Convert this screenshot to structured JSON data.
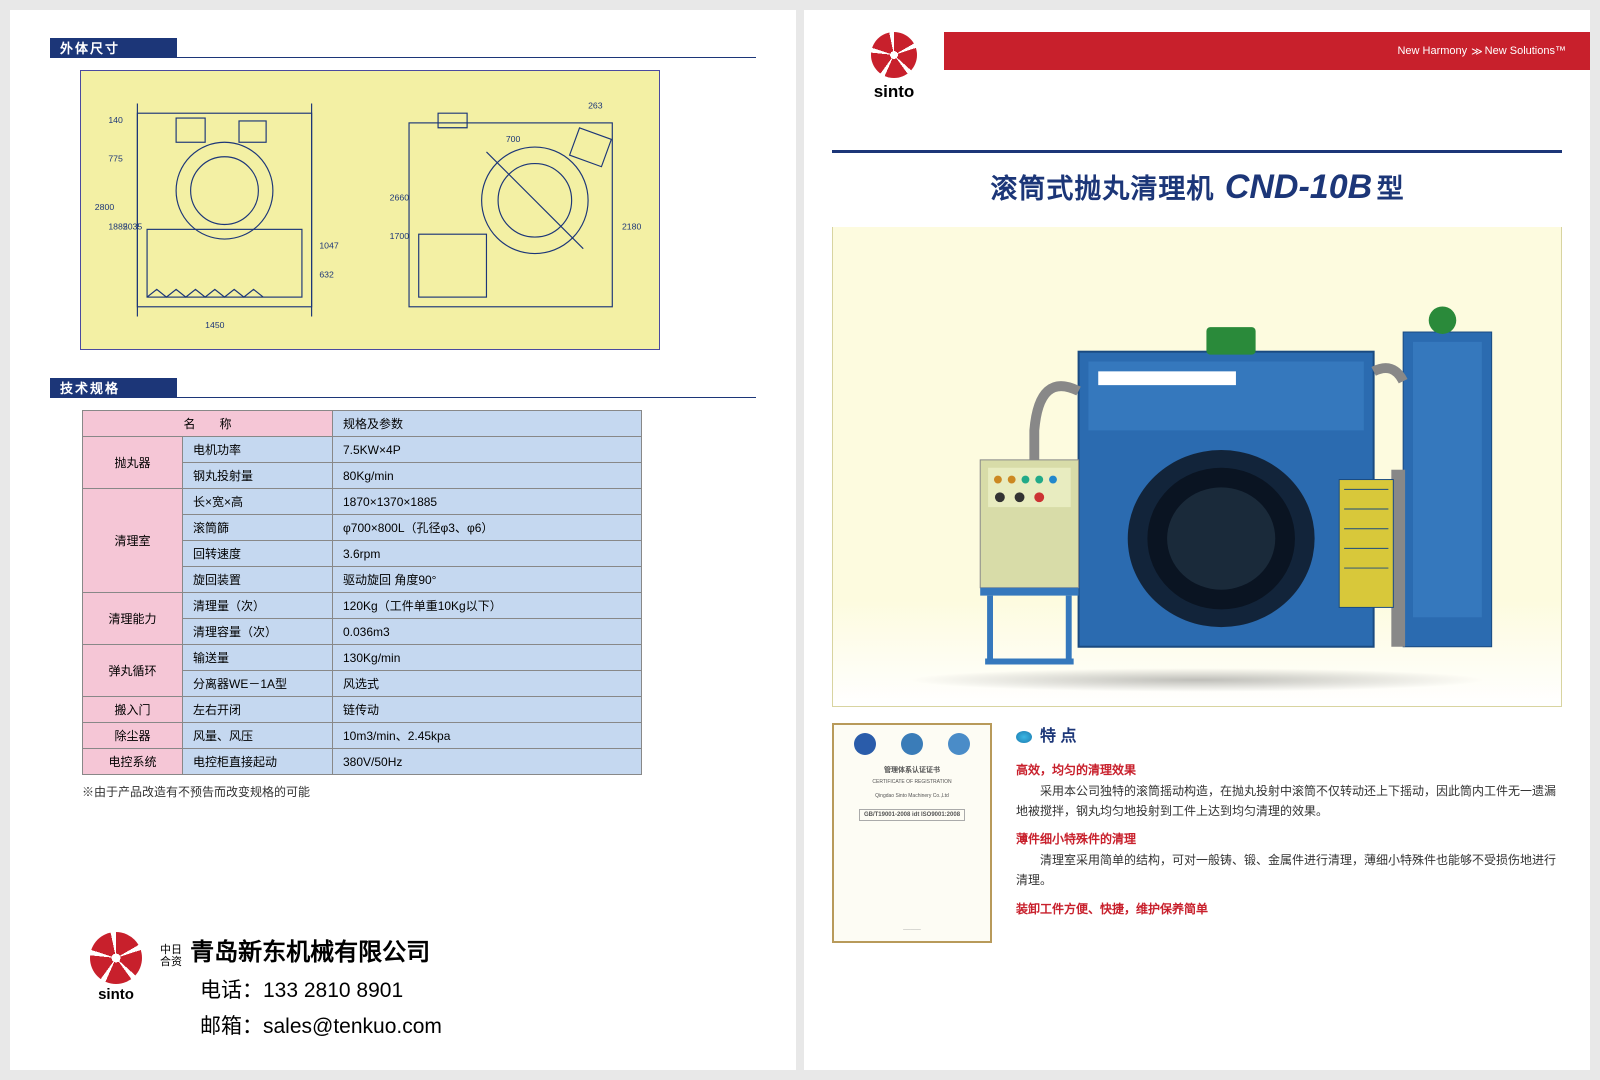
{
  "left": {
    "section1_title": "外体尺寸",
    "section2_title": "技术规格",
    "diagram_dims": {
      "d1": [
        "140",
        "775",
        "1885",
        "2035",
        "2800",
        "632",
        "1047",
        "1450"
      ],
      "d2": [
        "263",
        "700",
        "1700",
        "2660",
        "2180"
      ]
    },
    "table": {
      "header_name": "名　　称",
      "header_spec": "规格及参数",
      "rows": [
        {
          "cat": "抛丸器",
          "rowspan": 2,
          "name": "电机功率",
          "val": "7.5KW×4P"
        },
        {
          "cat": null,
          "name": "钢丸投射量",
          "val": "80Kg/min"
        },
        {
          "cat": "清理室",
          "rowspan": 4,
          "name": "长×宽×高",
          "val": "1870×1370×1885"
        },
        {
          "cat": null,
          "name": "滚筒篩",
          "val": "φ700×800L（孔径φ3、φ6）"
        },
        {
          "cat": null,
          "name": "回转速度",
          "val": "3.6rpm"
        },
        {
          "cat": null,
          "name": "旋回装置",
          "val": "驱动旋回 角度90°"
        },
        {
          "cat": "清理能力",
          "rowspan": 2,
          "name": "清理量（次）",
          "val": "120Kg（工件单重10Kg以下）"
        },
        {
          "cat": null,
          "name": "清理容量（次）",
          "val": "0.036m3"
        },
        {
          "cat": "弹丸循环",
          "rowspan": 2,
          "name": "输送量",
          "val": "130Kg/min"
        },
        {
          "cat": null,
          "name": "分离器WE－1A型",
          "val": "风选式"
        },
        {
          "cat": "搬入门",
          "rowspan": 1,
          "name": "左右开闭",
          "val": "链传动"
        },
        {
          "cat": "除尘器",
          "rowspan": 1,
          "name": "风量、风压",
          "val": "10m3/min、2.45kpa"
        },
        {
          "cat": "电控系统",
          "rowspan": 1,
          "name": "电控柜直接起动",
          "val": "380V/50Hz"
        }
      ]
    },
    "note": "※由于产品改造有不预告而改变规格的可能",
    "company": {
      "jv1": "中日",
      "jv2": "合资",
      "name": "青岛新东机械有限公司",
      "tel_label": "电话：",
      "tel": "133 2810 8901",
      "mail_label": "邮箱：",
      "mail": "sales@tenkuo.com",
      "brand": "sinto"
    }
  },
  "right": {
    "brand": "sinto",
    "ribbon_left": "New Harmony",
    "ribbon_right": "New Solutions™",
    "title_cn": "滚筒式抛丸清理机",
    "title_model": "CND-10B",
    "title_suffix": "型",
    "cert_title": "管理体系认证证书",
    "cert_sub": "CERTIFICATE OF REGISTRATION",
    "cert_org": "Qingdao Sinto Machinery Co.,Ltd",
    "cert_std": "GB/T19001-2008 idt ISO9001:2008",
    "features": {
      "title": "特 点",
      "h1": "高效，均匀的清理效果",
      "p1": "采用本公司独特的滚筒摇动构造，在抛丸投射中滚筒不仅转动还上下摇动，因此筒内工件无一遗漏地被搅拌，钢丸均匀地投射到工件上达到均匀清理的效果。",
      "h2": "薄件细小特殊件的清理",
      "p2": "清理室采用简单的结构，可对一般铸、锻、金属件进行清理，薄细小特殊件也能够不受损伤地进行清理。",
      "s1": "装卸工件方便、快捷，维护保养简单"
    }
  }
}
